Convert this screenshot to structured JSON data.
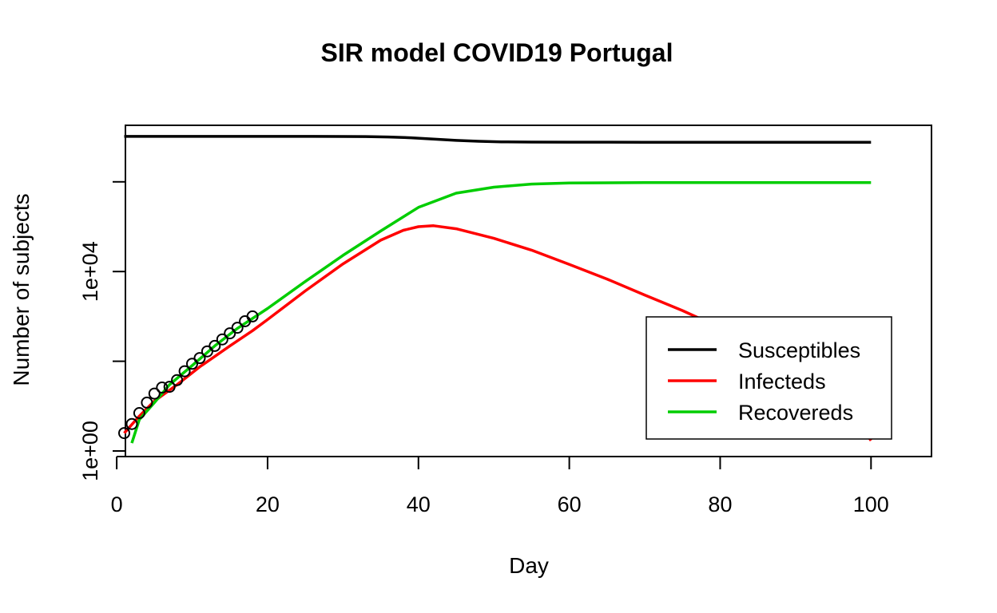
{
  "chart_data": {
    "type": "line",
    "title": "SIR model COVID19 Portugal",
    "xlabel": "Day",
    "ylabel": "Number of subjects",
    "xlim": [
      0,
      100
    ],
    "ylog": true,
    "ylim_log10": [
      0,
      7.2
    ],
    "x_ticks": [
      0,
      20,
      40,
      60,
      80,
      100
    ],
    "x_tick_labels": [
      "0",
      "20",
      "40",
      "60",
      "80",
      "100"
    ],
    "y_ticks": [
      1,
      100,
      10000,
      1000000
    ],
    "y_tick_labels": [
      "1e+00",
      "",
      "1e+04",
      ""
    ],
    "legend": {
      "position": "bottom-right",
      "entries": [
        {
          "label": "Susceptibles",
          "color": "#000000"
        },
        {
          "label": "Infecteds",
          "color": "#ff0000"
        },
        {
          "label": "Recovereds",
          "color": "#00cd00"
        }
      ]
    },
    "series": [
      {
        "name": "Susceptibles",
        "color": "#000000",
        "x": [
          1,
          10,
          20,
          26,
          30,
          33,
          36,
          39,
          42,
          45,
          48,
          51,
          55,
          60,
          70,
          80,
          90,
          100
        ],
        "y": [
          10280000,
          10280000,
          10280000,
          10270000,
          10240000,
          10200000,
          10000000,
          9600000,
          9000000,
          8400000,
          8000000,
          7800000,
          7700000,
          7650000,
          7620000,
          7620000,
          7620000,
          7620000
        ]
      },
      {
        "name": "Infecteds",
        "color": "#ff0000",
        "x": [
          1,
          3,
          5,
          8,
          11,
          15,
          18,
          20,
          25,
          30,
          35,
          38,
          40,
          42,
          45,
          50,
          55,
          60,
          65,
          70,
          75,
          80,
          85,
          90,
          95,
          100
        ],
        "y": [
          2.5,
          6,
          13,
          30,
          75,
          220,
          480,
          850,
          3700,
          14800,
          50000,
          83000,
          100000,
          105000,
          90000,
          55000,
          30000,
          14400,
          6800,
          3000,
          1350,
          560,
          230,
          80,
          26,
          1.7
        ]
      },
      {
        "name": "Recovereds",
        "color": "#00cd00",
        "x": [
          2,
          3,
          5,
          7,
          10,
          13,
          16,
          20,
          25,
          30,
          35,
          40,
          45,
          50,
          55,
          60,
          70,
          80,
          90,
          100
        ],
        "y": [
          1.5,
          5,
          12,
          30,
          80,
          220,
          540,
          1500,
          6000,
          23000,
          80000,
          270000,
          560000,
          760000,
          890000,
          940000,
          960000,
          965000,
          965000,
          965000
        ]
      }
    ],
    "points": {
      "name": "observed",
      "color": "#000000",
      "x": [
        1,
        2,
        3,
        4,
        5,
        6,
        7,
        8,
        9,
        10,
        11,
        12,
        13,
        14,
        15,
        16,
        17,
        18
      ],
      "y": [
        2.5,
        4,
        7,
        12,
        19,
        26,
        27,
        38,
        60,
        88,
        118,
        166,
        220,
        307,
        420,
        560,
        780,
        1000
      ]
    }
  }
}
